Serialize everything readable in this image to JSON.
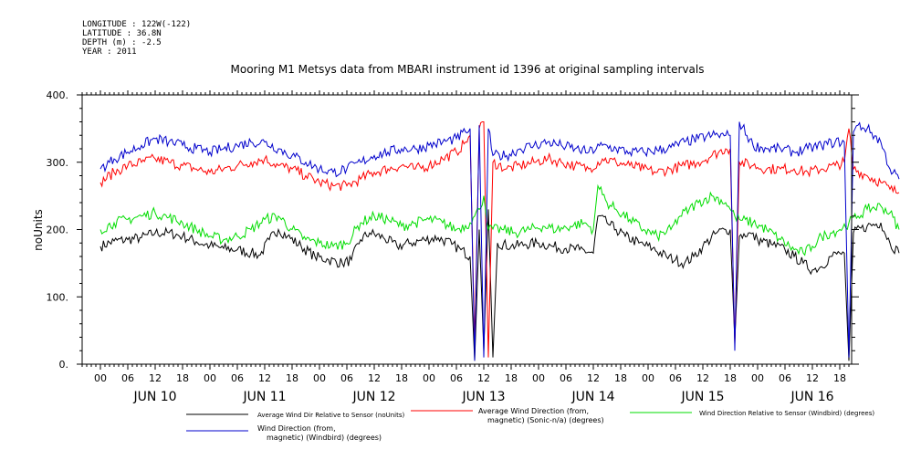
{
  "header": {
    "longitude": "LONGITUDE : 122W(-122)",
    "latitude": "LATITUDE : 36.8N",
    "depth": "DEPTH (m) : -2.5",
    "year": "YEAR : 2011"
  },
  "chart_data": {
    "type": "line",
    "title": "Mooring M1 Metsys data from MBARI instrument id 1396 at original sampling intervals",
    "ylabel": "noUnits",
    "ylim": [
      0,
      400
    ],
    "yticks": [
      0,
      100,
      200,
      300,
      400
    ],
    "ytick_labels": [
      "0.",
      "100.",
      "200.",
      "300.",
      "400."
    ],
    "xlim_hours": [
      0,
      175
    ],
    "hour_labels": [
      "00",
      "06",
      "12",
      "18",
      "00",
      "06",
      "12",
      "18",
      "00",
      "06",
      "12",
      "18",
      "00",
      "06",
      "12",
      "18",
      "00",
      "06",
      "12",
      "18",
      "00",
      "06",
      "12",
      "18",
      "00",
      "06",
      "12",
      "18"
    ],
    "day_labels": [
      "JUN 10",
      "JUN 11",
      "JUN 12",
      "JUN 13",
      "JUN 14",
      "JUN 15",
      "JUN 16"
    ],
    "grid": false,
    "legend_position": "bottom",
    "series": [
      {
        "name": "Average Wind Dir Relative to Sensor (noUnits)",
        "color": "#000000",
        "points": [
          [
            0,
            175
          ],
          [
            3,
            183
          ],
          [
            6,
            185
          ],
          [
            9,
            188
          ],
          [
            12,
            195
          ],
          [
            15,
            195
          ],
          [
            18,
            190
          ],
          [
            21,
            182
          ],
          [
            24,
            176
          ],
          [
            27,
            172
          ],
          [
            30,
            170
          ],
          [
            33,
            165
          ],
          [
            35,
            162
          ],
          [
            37,
            185
          ],
          [
            39,
            200
          ],
          [
            41,
            190
          ],
          [
            44,
            175
          ],
          [
            47,
            160
          ],
          [
            50,
            155
          ],
          [
            53,
            150
          ],
          [
            55,
            155
          ],
          [
            57,
            185
          ],
          [
            59,
            195
          ],
          [
            62,
            188
          ],
          [
            65,
            175
          ],
          [
            68,
            180
          ],
          [
            71,
            185
          ],
          [
            74,
            188
          ],
          [
            77,
            178
          ],
          [
            79,
            170
          ],
          [
            81,
            160
          ],
          [
            82,
            5
          ],
          [
            83,
            200
          ],
          [
            84,
            20
          ],
          [
            85,
            230
          ],
          [
            86,
            10
          ],
          [
            87,
            180
          ],
          [
            90,
            175
          ],
          [
            93,
            178
          ],
          [
            96,
            180
          ],
          [
            99,
            175
          ],
          [
            102,
            172
          ],
          [
            105,
            170
          ],
          [
            108,
            165
          ],
          [
            109,
            220
          ],
          [
            111,
            210
          ],
          [
            113,
            200
          ],
          [
            115,
            190
          ],
          [
            118,
            180
          ],
          [
            121,
            172
          ],
          [
            124,
            160
          ],
          [
            126,
            155
          ],
          [
            128,
            150
          ],
          [
            130,
            160
          ],
          [
            132,
            175
          ],
          [
            135,
            195
          ],
          [
            137,
            200
          ],
          [
            138,
            200
          ],
          [
            139,
            35
          ],
          [
            140,
            190
          ],
          [
            142,
            195
          ],
          [
            144,
            185
          ],
          [
            147,
            178
          ],
          [
            150,
            170
          ],
          [
            152,
            160
          ],
          [
            154,
            150
          ],
          [
            156,
            140
          ],
          [
            158,
            145
          ],
          [
            160,
            160
          ],
          [
            162,
            165
          ],
          [
            163,
            165
          ],
          [
            164,
            5
          ],
          [
            165,
            195
          ],
          [
            168,
            205
          ],
          [
            171,
            210
          ],
          [
            173,
            180
          ],
          [
            175,
            165
          ]
        ]
      },
      {
        "name": "Average Wind Direction (from, magnetic) (Sonic-n/a) (degrees)",
        "color": "#ff0000",
        "points": [
          [
            0,
            270
          ],
          [
            3,
            285
          ],
          [
            6,
            295
          ],
          [
            9,
            300
          ],
          [
            12,
            305
          ],
          [
            15,
            300
          ],
          [
            18,
            295
          ],
          [
            21,
            290
          ],
          [
            24,
            285
          ],
          [
            27,
            290
          ],
          [
            30,
            295
          ],
          [
            33,
            300
          ],
          [
            36,
            305
          ],
          [
            39,
            295
          ],
          [
            42,
            290
          ],
          [
            45,
            280
          ],
          [
            48,
            270
          ],
          [
            51,
            265
          ],
          [
            54,
            265
          ],
          [
            57,
            275
          ],
          [
            60,
            285
          ],
          [
            63,
            290
          ],
          [
            66,
            295
          ],
          [
            69,
            290
          ],
          [
            72,
            295
          ],
          [
            75,
            305
          ],
          [
            78,
            315
          ],
          [
            80,
            330
          ],
          [
            81,
            340
          ],
          [
            82,
            30
          ],
          [
            83,
            350
          ],
          [
            84,
            360
          ],
          [
            85,
            10
          ],
          [
            86,
            300
          ],
          [
            89,
            290
          ],
          [
            92,
            295
          ],
          [
            95,
            300
          ],
          [
            98,
            305
          ],
          [
            101,
            300
          ],
          [
            104,
            295
          ],
          [
            107,
            290
          ],
          [
            110,
            305
          ],
          [
            113,
            300
          ],
          [
            116,
            295
          ],
          [
            119,
            290
          ],
          [
            122,
            285
          ],
          [
            125,
            290
          ],
          [
            128,
            295
          ],
          [
            131,
            300
          ],
          [
            134,
            310
          ],
          [
            137,
            320
          ],
          [
            138,
            320
          ],
          [
            139,
            30
          ],
          [
            140,
            300
          ],
          [
            143,
            295
          ],
          [
            146,
            290
          ],
          [
            149,
            290
          ],
          [
            152,
            290
          ],
          [
            155,
            285
          ],
          [
            158,
            290
          ],
          [
            161,
            295
          ],
          [
            163,
            300
          ],
          [
            164,
            350
          ],
          [
            165,
            290
          ],
          [
            168,
            280
          ],
          [
            171,
            270
          ],
          [
            173,
            260
          ],
          [
            175,
            255
          ]
        ]
      },
      {
        "name": "Wind Direction Relative to Sensor (Windbird) (degrees)",
        "color": "#00dd00",
        "points": [
          [
            0,
            200
          ],
          [
            3,
            210
          ],
          [
            6,
            215
          ],
          [
            9,
            220
          ],
          [
            12,
            225
          ],
          [
            15,
            218
          ],
          [
            18,
            210
          ],
          [
            21,
            200
          ],
          [
            24,
            190
          ],
          [
            27,
            185
          ],
          [
            30,
            190
          ],
          [
            33,
            200
          ],
          [
            36,
            215
          ],
          [
            39,
            220
          ],
          [
            42,
            200
          ],
          [
            45,
            185
          ],
          [
            48,
            180
          ],
          [
            51,
            175
          ],
          [
            54,
            180
          ],
          [
            57,
            210
          ],
          [
            60,
            220
          ],
          [
            63,
            215
          ],
          [
            66,
            205
          ],
          [
            69,
            210
          ],
          [
            72,
            215
          ],
          [
            75,
            210
          ],
          [
            78,
            200
          ],
          [
            81,
            210
          ],
          [
            82,
            220
          ],
          [
            83,
            230
          ],
          [
            84,
            250
          ],
          [
            85,
            200
          ],
          [
            88,
            200
          ],
          [
            91,
            195
          ],
          [
            94,
            200
          ],
          [
            97,
            205
          ],
          [
            100,
            200
          ],
          [
            103,
            205
          ],
          [
            106,
            210
          ],
          [
            108,
            200
          ],
          [
            109,
            265
          ],
          [
            111,
            240
          ],
          [
            113,
            230
          ],
          [
            116,
            215
          ],
          [
            119,
            200
          ],
          [
            122,
            190
          ],
          [
            125,
            200
          ],
          [
            127,
            220
          ],
          [
            129,
            230
          ],
          [
            131,
            240
          ],
          [
            134,
            250
          ],
          [
            137,
            240
          ],
          [
            138,
            230
          ],
          [
            139,
            220
          ],
          [
            140,
            215
          ],
          [
            143,
            210
          ],
          [
            146,
            200
          ],
          [
            149,
            185
          ],
          [
            152,
            170
          ],
          [
            154,
            165
          ],
          [
            156,
            175
          ],
          [
            158,
            190
          ],
          [
            160,
            195
          ],
          [
            162,
            200
          ],
          [
            164,
            210
          ],
          [
            166,
            220
          ],
          [
            168,
            230
          ],
          [
            171,
            235
          ],
          [
            173,
            225
          ],
          [
            175,
            200
          ]
        ]
      },
      {
        "name": "Wind Direction (from, magnetic) (Windbird) (degrees)",
        "color": "#0000cc",
        "points": [
          [
            0,
            290
          ],
          [
            3,
            305
          ],
          [
            6,
            315
          ],
          [
            9,
            325
          ],
          [
            12,
            335
          ],
          [
            15,
            330
          ],
          [
            18,
            325
          ],
          [
            21,
            320
          ],
          [
            24,
            315
          ],
          [
            27,
            320
          ],
          [
            30,
            325
          ],
          [
            33,
            330
          ],
          [
            36,
            330
          ],
          [
            39,
            320
          ],
          [
            42,
            310
          ],
          [
            45,
            300
          ],
          [
            48,
            290
          ],
          [
            51,
            285
          ],
          [
            54,
            290
          ],
          [
            57,
            300
          ],
          [
            60,
            310
          ],
          [
            63,
            315
          ],
          [
            66,
            320
          ],
          [
            69,
            320
          ],
          [
            72,
            325
          ],
          [
            75,
            330
          ],
          [
            78,
            335
          ],
          [
            80,
            345
          ],
          [
            81,
            350
          ],
          [
            82,
            5
          ],
          [
            83,
            355
          ],
          [
            84,
            10
          ],
          [
            85,
            350
          ],
          [
            86,
            310
          ],
          [
            89,
            310
          ],
          [
            92,
            320
          ],
          [
            95,
            325
          ],
          [
            98,
            330
          ],
          [
            101,
            325
          ],
          [
            104,
            320
          ],
          [
            107,
            315
          ],
          [
            110,
            325
          ],
          [
            113,
            320
          ],
          [
            116,
            315
          ],
          [
            119,
            315
          ],
          [
            122,
            318
          ],
          [
            125,
            322
          ],
          [
            128,
            330
          ],
          [
            131,
            335
          ],
          [
            134,
            340
          ],
          [
            137,
            340
          ],
          [
            138,
            340
          ],
          [
            139,
            20
          ],
          [
            140,
            360
          ],
          [
            143,
            325
          ],
          [
            146,
            320
          ],
          [
            149,
            320
          ],
          [
            152,
            315
          ],
          [
            155,
            320
          ],
          [
            158,
            325
          ],
          [
            161,
            330
          ],
          [
            163,
            330
          ],
          [
            164,
            10
          ],
          [
            165,
            345
          ],
          [
            166,
            355
          ],
          [
            168,
            350
          ],
          [
            171,
            330
          ],
          [
            173,
            290
          ],
          [
            175,
            275
          ]
        ]
      }
    ]
  }
}
